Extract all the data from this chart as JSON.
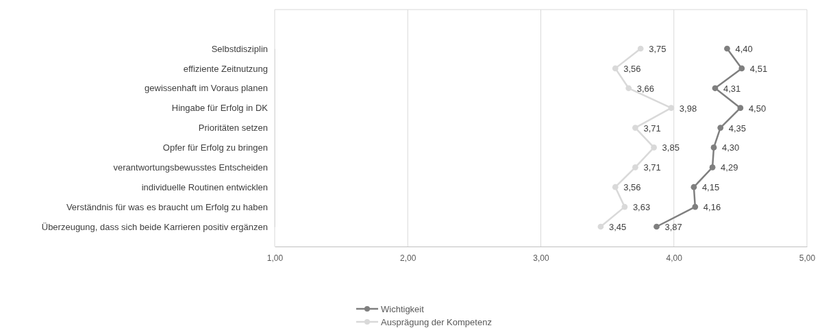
{
  "chart_data": {
    "type": "line",
    "orientation": "horizontal",
    "categories": [
      "Selbstdisziplin",
      "effiziente Zeitnutzung",
      "gewissenhaft im Voraus planen",
      "Hingabe für Erfolg in DK",
      "Prioritäten setzen",
      "Opfer für Erfolg zu bringen",
      "verantwortungsbewusstes Entscheiden",
      "individuelle Routinen entwicklen",
      "Verständnis für was es braucht um Erfolg zu haben",
      "Überzeugung, dass sich beide Karrieren positiv ergänzen"
    ],
    "series": [
      {
        "name": "Wichtigkeit",
        "color": "#7f7f7f",
        "values": [
          4.4,
          4.51,
          4.31,
          4.5,
          4.35,
          4.3,
          4.29,
          4.15,
          4.16,
          3.87
        ],
        "value_labels": [
          "4,40",
          "4,51",
          "4,31",
          "4,50",
          "4,35",
          "4,30",
          "4,29",
          "4,15",
          "4,16",
          "3,87"
        ]
      },
      {
        "name": "Ausprägung der Kompetenz",
        "color": "#d9d9d9",
        "values": [
          3.75,
          3.56,
          3.66,
          3.98,
          3.71,
          3.85,
          3.71,
          3.56,
          3.63,
          3.45
        ],
        "value_labels": [
          "3,75",
          "3,56",
          "3,66",
          "3,98",
          "3,71",
          "3,85",
          "3,71",
          "3,56",
          "3,63",
          "3,45"
        ]
      }
    ],
    "xlim": [
      1,
      5
    ],
    "xticks": [
      {
        "value": 1,
        "label": "1,00"
      },
      {
        "value": 2,
        "label": "2,00"
      },
      {
        "value": 3,
        "label": "3,00"
      },
      {
        "value": 4,
        "label": "4,00"
      },
      {
        "value": 5,
        "label": "5,00"
      }
    ],
    "grid": "x",
    "legend": "bottom",
    "marker": "circle",
    "line_style": "solid"
  }
}
